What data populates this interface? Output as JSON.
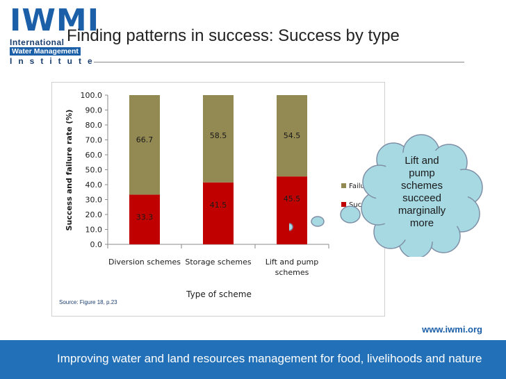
{
  "logo": {
    "big_text": "IWMI",
    "line1": "International",
    "line2": "Water Management",
    "line3": "Institute"
  },
  "slide_title": "Finding patterns in success: Success by type",
  "source_note": "Source: Figure 18, p.23",
  "callout": {
    "lines": [
      "Lift and",
      "pump",
      "schemes",
      "succeed",
      "marginally",
      "more"
    ]
  },
  "footer": {
    "url": "www.iwmi.org",
    "tagline": "Improving water and land resources management for food, livelihoods and nature"
  },
  "colors": {
    "success": "#c00000",
    "failure": "#938953",
    "footer_blue": "#2170b8",
    "callout_fill": "#a7d9e3"
  },
  "chart_data": {
    "type": "bar",
    "stacked": true,
    "categories": [
      "Diversion schemes",
      "Storage schemes",
      "Lift and pump schemes"
    ],
    "series": [
      {
        "name": "Success",
        "values": [
          33.3,
          41.5,
          45.5
        ],
        "color": "#c00000"
      },
      {
        "name": "Failure",
        "values": [
          66.7,
          58.5,
          54.5
        ],
        "color": "#938953"
      }
    ],
    "title": "",
    "xlabel": "Type of scheme",
    "ylabel": "Success and failure rate (%)",
    "ylim": [
      0,
      100
    ],
    "yticks": [
      "0.0",
      "10.0",
      "20.0",
      "30.0",
      "40.0",
      "50.0",
      "60.0",
      "70.0",
      "80.0",
      "90.0",
      "100.0"
    ],
    "legend": "right",
    "grid": false
  }
}
